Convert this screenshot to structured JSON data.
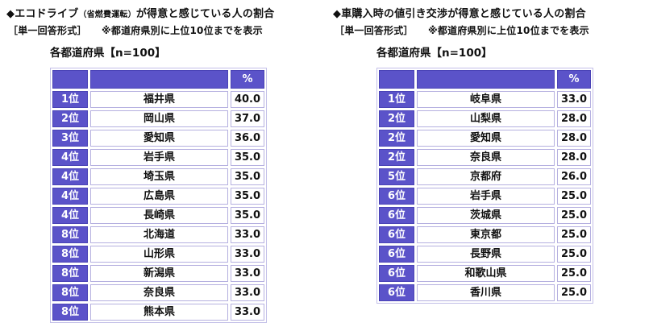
{
  "colors": {
    "accent_purple": "#5b53c9",
    "purple_border": "#4a43b6",
    "cell_border": "#b5b0e0",
    "text": "#111111",
    "background": "#ffffff"
  },
  "panels": [
    {
      "title_main": "◆エコドライブ",
      "title_small": "（省燃費運転）",
      "title_rest": "が得意と感じている人の割合",
      "subtitle": "［単一回答形式］　　※都道府県別に上位10位までを表示",
      "caption": "各都道府県【n=100】",
      "header_percent": "%",
      "rows": [
        {
          "rank": "1位",
          "pref": "福井県",
          "pct": "40.0"
        },
        {
          "rank": "2位",
          "pref": "岡山県",
          "pct": "37.0"
        },
        {
          "rank": "3位",
          "pref": "愛知県",
          "pct": "36.0"
        },
        {
          "rank": "4位",
          "pref": "岩手県",
          "pct": "35.0"
        },
        {
          "rank": "4位",
          "pref": "埼玉県",
          "pct": "35.0"
        },
        {
          "rank": "4位",
          "pref": "広島県",
          "pct": "35.0"
        },
        {
          "rank": "4位",
          "pref": "長崎県",
          "pct": "35.0"
        },
        {
          "rank": "8位",
          "pref": "北海道",
          "pct": "33.0"
        },
        {
          "rank": "8位",
          "pref": "山形県",
          "pct": "33.0"
        },
        {
          "rank": "8位",
          "pref": "新潟県",
          "pct": "33.0"
        },
        {
          "rank": "8位",
          "pref": "奈良県",
          "pct": "33.0"
        },
        {
          "rank": "8位",
          "pref": "熊本県",
          "pct": "33.0"
        }
      ]
    },
    {
      "title_main": "◆車購入時の値引き交渉が得意と感じている人の割合",
      "title_small": "",
      "title_rest": "",
      "subtitle": "［単一回答形式］　　※都道府県別に上位10位までを表示",
      "caption": "各都道府県【n=100】",
      "header_percent": "%",
      "rows": [
        {
          "rank": "1位",
          "pref": "岐阜県",
          "pct": "33.0"
        },
        {
          "rank": "2位",
          "pref": "山梨県",
          "pct": "28.0"
        },
        {
          "rank": "2位",
          "pref": "愛知県",
          "pct": "28.0"
        },
        {
          "rank": "2位",
          "pref": "奈良県",
          "pct": "28.0"
        },
        {
          "rank": "5位",
          "pref": "京都府",
          "pct": "26.0"
        },
        {
          "rank": "6位",
          "pref": "岩手県",
          "pct": "25.0"
        },
        {
          "rank": "6位",
          "pref": "茨城県",
          "pct": "25.0"
        },
        {
          "rank": "6位",
          "pref": "東京都",
          "pct": "25.0"
        },
        {
          "rank": "6位",
          "pref": "長野県",
          "pct": "25.0"
        },
        {
          "rank": "6位",
          "pref": "和歌山県",
          "pct": "25.0"
        },
        {
          "rank": "6位",
          "pref": "香川県",
          "pct": "25.0"
        }
      ]
    }
  ],
  "chart_data": [
    {
      "type": "table",
      "title": "◆エコドライブ（省燃費運転）が得意と感じている人の割合",
      "subtitle": "［単一回答形式］　※都道府県別に上位10位までを表示",
      "sample": "各都道府県【n=100】",
      "columns": [
        "",
        "",
        "%"
      ],
      "rows": [
        [
          "1位",
          "福井県",
          40.0
        ],
        [
          "2位",
          "岡山県",
          37.0
        ],
        [
          "3位",
          "愛知県",
          36.0
        ],
        [
          "4位",
          "岩手県",
          35.0
        ],
        [
          "4位",
          "埼玉県",
          35.0
        ],
        [
          "4位",
          "広島県",
          35.0
        ],
        [
          "4位",
          "長崎県",
          35.0
        ],
        [
          "8位",
          "北海道",
          33.0
        ],
        [
          "8位",
          "山形県",
          33.0
        ],
        [
          "8位",
          "新潟県",
          33.0
        ],
        [
          "8位",
          "奈良県",
          33.0
        ],
        [
          "8位",
          "熊本県",
          33.0
        ]
      ]
    },
    {
      "type": "table",
      "title": "◆車購入時の値引き交渉が得意と感じている人の割合",
      "subtitle": "［単一回答形式］　※都道府県別に上位10位までを表示",
      "sample": "各都道府県【n=100】",
      "columns": [
        "",
        "",
        "%"
      ],
      "rows": [
        [
          "1位",
          "岐阜県",
          33.0
        ],
        [
          "2位",
          "山梨県",
          28.0
        ],
        [
          "2位",
          "愛知県",
          28.0
        ],
        [
          "2位",
          "奈良県",
          28.0
        ],
        [
          "5位",
          "京都府",
          26.0
        ],
        [
          "6位",
          "岩手県",
          25.0
        ],
        [
          "6位",
          "茨城県",
          25.0
        ],
        [
          "6位",
          "東京都",
          25.0
        ],
        [
          "6位",
          "長野県",
          25.0
        ],
        [
          "6位",
          "和歌山県",
          25.0
        ],
        [
          "6位",
          "香川県",
          25.0
        ]
      ]
    }
  ]
}
